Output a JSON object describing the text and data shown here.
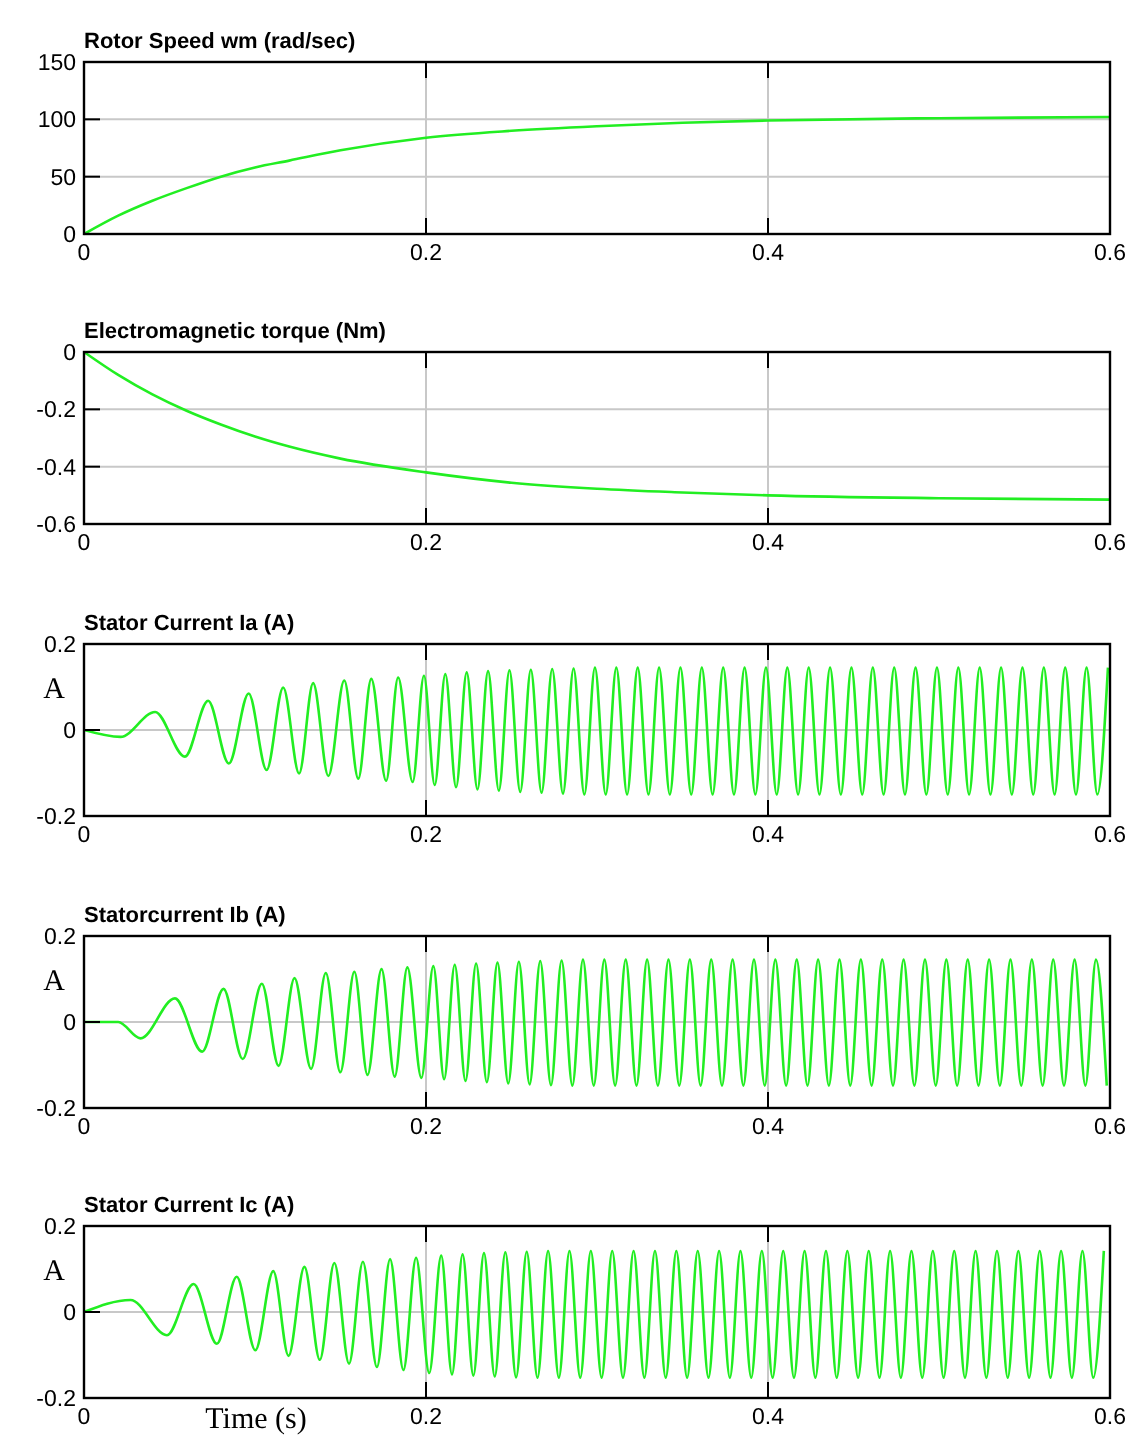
{
  "chart_data": [
    {
      "type": "line",
      "title": "Rotor Speed wm (rad/sec)",
      "xlim": [
        0,
        0.6
      ],
      "ylim": [
        0,
        150
      ],
      "xticks": [
        0,
        0.2,
        0.4,
        0.6
      ],
      "yticks": [
        0,
        50,
        100,
        150
      ],
      "grid": true,
      "series": [
        {
          "color": "#22ee22",
          "x": [
            0,
            0.02,
            0.04,
            0.06,
            0.08,
            0.1,
            0.12,
            0.15,
            0.2,
            0.25,
            0.3,
            0.35,
            0.4,
            0.5,
            0.6
          ],
          "values": [
            0,
            16,
            29,
            40,
            50,
            58,
            64,
            73,
            84,
            90,
            94,
            97,
            99,
            101,
            102
          ]
        }
      ]
    },
    {
      "type": "line",
      "title": "Electromagnetic torque (Nm)",
      "xlim": [
        0,
        0.6
      ],
      "ylim": [
        -0.6,
        0
      ],
      "xticks": [
        0,
        0.2,
        0.4,
        0.6
      ],
      "yticks": [
        -0.6,
        -0.4,
        -0.2,
        0
      ],
      "grid": true,
      "series": [
        {
          "color": "#22ee22",
          "x": [
            0,
            0.02,
            0.04,
            0.06,
            0.08,
            0.1,
            0.12,
            0.15,
            0.2,
            0.25,
            0.3,
            0.35,
            0.4,
            0.5,
            0.6
          ],
          "values": [
            0,
            -0.08,
            -0.148,
            -0.205,
            -0.253,
            -0.295,
            -0.33,
            -0.372,
            -0.42,
            -0.456,
            -0.477,
            -0.49,
            -0.5,
            -0.51,
            -0.515
          ]
        }
      ]
    },
    {
      "type": "line",
      "title": "Stator Current Ia (A)",
      "ylabel": "A",
      "xlim": [
        0,
        0.6
      ],
      "ylim": [
        -0.2,
        0.2
      ],
      "xticks": [
        0,
        0.2,
        0.4,
        0.6
      ],
      "yticks": [
        -0.2,
        0,
        0.2
      ],
      "grid": true,
      "series": [
        {
          "color": "#22ee22",
          "x": [
            0,
            0.0214,
            0.0416,
            0.059,
            0.0726,
            0.0847,
            0.0963,
            0.1068,
            0.1165,
            0.1258,
            0.134,
            0.1429,
            0.1522,
            0.1604,
            0.168,
            0.1767,
            0.1837,
            0.1922,
            0.1988,
            0.2051,
            0.2113,
            0.2176,
            0.2238,
            0.2301,
            0.2363,
            0.2426,
            0.2488,
            0.2551,
            0.2613,
            0.2676,
            0.2738,
            0.2801,
            0.2863,
            0.2926,
            0.2988,
            0.3051,
            0.3113,
            0.3176,
            0.3238,
            0.3301,
            0.3363,
            0.3426,
            0.3488,
            0.3551,
            0.3613,
            0.3676,
            0.3738,
            0.3801,
            0.3863,
            0.3926,
            0.3988,
            0.4051,
            0.4113,
            0.4176,
            0.4238,
            0.4301,
            0.4363,
            0.4426,
            0.4488,
            0.4551,
            0.4613,
            0.4676,
            0.4738,
            0.4801,
            0.4863,
            0.4926,
            0.4988,
            0.5051,
            0.5113,
            0.5176,
            0.5238,
            0.5301,
            0.5363,
            0.5426,
            0.5488,
            0.5551,
            0.5613,
            0.5676,
            0.5738,
            0.5801,
            0.5863,
            0.5926,
            0.5988
          ],
          "values": [
            0,
            -0.016,
            0.042,
            -0.062,
            0.068,
            -0.078,
            0.085,
            -0.093,
            0.099,
            -0.101,
            0.109,
            -0.107,
            0.115,
            -0.113,
            0.119,
            -0.118,
            0.122,
            -0.121,
            0.126,
            -0.128,
            0.13,
            -0.133,
            0.134,
            -0.138,
            0.137,
            -0.141,
            0.139,
            -0.144,
            0.14,
            -0.146,
            0.142,
            -0.148,
            0.143,
            -0.15,
            0.145,
            -0.15,
            0.145,
            -0.15,
            0.145,
            -0.15,
            0.145,
            -0.15,
            0.145,
            -0.15,
            0.145,
            -0.15,
            0.145,
            -0.15,
            0.145,
            -0.15,
            0.145,
            -0.15,
            0.145,
            -0.15,
            0.145,
            -0.15,
            0.145,
            -0.15,
            0.145,
            -0.15,
            0.145,
            -0.15,
            0.145,
            -0.15,
            0.145,
            -0.15,
            0.145,
            -0.15,
            0.145,
            -0.15,
            0.145,
            -0.15,
            0.145,
            -0.15,
            0.145,
            -0.15,
            0.145,
            -0.15,
            0.145,
            -0.15,
            0.145,
            -0.15,
            0.145
          ]
        }
      ]
    },
    {
      "type": "line",
      "title": "Statorcurrent Ib (A)",
      "ylabel": "A",
      "xlim": [
        0,
        0.6
      ],
      "ylim": [
        -0.2,
        0.2
      ],
      "xticks": [
        0,
        0.2,
        0.4,
        0.6
      ],
      "yticks": [
        -0.2,
        0,
        0.2
      ],
      "grid": true,
      "series": [
        {
          "color": "#22ee22",
          "x": [
            0,
            0.02,
            0.033,
            0.0532,
            0.0691,
            0.0816,
            0.0928,
            0.104,
            0.1138,
            0.1231,
            0.1328,
            0.1414,
            0.1499,
            0.1581,
            0.1658,
            0.174,
            0.1817,
            0.1891,
            0.1973,
            0.2043,
            0.2106,
            0.2168,
            0.2231,
            0.2293,
            0.2356,
            0.2418,
            0.2481,
            0.2543,
            0.2606,
            0.2668,
            0.2731,
            0.2793,
            0.2856,
            0.2918,
            0.2981,
            0.3043,
            0.3106,
            0.3168,
            0.3231,
            0.3293,
            0.3356,
            0.3418,
            0.3481,
            0.3543,
            0.3606,
            0.3668,
            0.3731,
            0.3793,
            0.3856,
            0.3918,
            0.3981,
            0.4043,
            0.4106,
            0.4168,
            0.4231,
            0.4293,
            0.4356,
            0.4418,
            0.4481,
            0.4543,
            0.4606,
            0.4668,
            0.4731,
            0.4793,
            0.4856,
            0.4918,
            0.4981,
            0.5043,
            0.5106,
            0.5168,
            0.5231,
            0.5293,
            0.5356,
            0.5418,
            0.5481,
            0.5543,
            0.5606,
            0.5668,
            0.5731,
            0.5793,
            0.5856,
            0.5918,
            0.5981
          ],
          "values": [
            0,
            0,
            -0.038,
            0.055,
            -0.069,
            0.077,
            -0.086,
            0.089,
            -0.102,
            0.102,
            -0.109,
            0.114,
            -0.117,
            0.117,
            -0.123,
            0.123,
            -0.127,
            0.127,
            -0.13,
            0.13,
            -0.133,
            0.133,
            -0.137,
            0.136,
            -0.14,
            0.138,
            -0.143,
            0.14,
            -0.145,
            0.142,
            -0.147,
            0.143,
            -0.148,
            0.145,
            -0.148,
            0.145,
            -0.148,
            0.145,
            -0.148,
            0.145,
            -0.148,
            0.145,
            -0.148,
            0.145,
            -0.148,
            0.145,
            -0.148,
            0.145,
            -0.148,
            0.145,
            -0.148,
            0.145,
            -0.148,
            0.145,
            -0.148,
            0.145,
            -0.148,
            0.145,
            -0.148,
            0.145,
            -0.148,
            0.145,
            -0.148,
            0.145,
            -0.148,
            0.145,
            -0.148,
            0.145,
            -0.148,
            0.145,
            -0.148,
            0.145,
            -0.148,
            0.145,
            -0.148,
            0.145,
            -0.148,
            0.145,
            -0.148,
            0.145,
            -0.148,
            0.145,
            -0.148
          ]
        }
      ]
    },
    {
      "type": "line",
      "title": "Stator Current Ic (A)",
      "ylabel": "A",
      "xlabel": "Time (s)",
      "xlim": [
        0,
        0.6
      ],
      "ylim": [
        -0.2,
        0.2
      ],
      "xticks": [
        0,
        0.2,
        0.4,
        0.6
      ],
      "yticks": [
        -0.2,
        0,
        0.2
      ],
      "grid": true,
      "series": [
        {
          "color": "#22ee22",
          "x": [
            0,
            0.0272,
            0.0485,
            0.0641,
            0.0777,
            0.0893,
            0.1002,
            0.1107,
            0.1196,
            0.1289,
            0.1379,
            0.1464,
            0.155,
            0.1631,
            0.1713,
            0.179,
            0.1868,
            0.1942,
            0.2019,
            0.2089,
            0.2152,
            0.2214,
            0.2277,
            0.2339,
            0.2402,
            0.2464,
            0.2527,
            0.2589,
            0.2652,
            0.2714,
            0.2777,
            0.2839,
            0.2902,
            0.2964,
            0.3027,
            0.3089,
            0.3152,
            0.3214,
            0.3277,
            0.3339,
            0.3402,
            0.3464,
            0.3527,
            0.3589,
            0.3652,
            0.3714,
            0.3777,
            0.3839,
            0.3902,
            0.3964,
            0.4027,
            0.4089,
            0.4152,
            0.4214,
            0.4277,
            0.4339,
            0.4402,
            0.4464,
            0.4527,
            0.4589,
            0.4652,
            0.4714,
            0.4777,
            0.4839,
            0.4902,
            0.4964,
            0.5027,
            0.5089,
            0.5152,
            0.5214,
            0.5277,
            0.5339,
            0.5402,
            0.5464,
            0.5527,
            0.5589,
            0.5652,
            0.5714,
            0.5777,
            0.5839,
            0.5902,
            0.5964
          ],
          "values": [
            0,
            0.028,
            -0.054,
            0.065,
            -0.074,
            0.082,
            -0.089,
            0.095,
            -0.102,
            0.105,
            -0.111,
            0.114,
            -0.12,
            0.117,
            -0.128,
            0.123,
            -0.135,
            0.126,
            -0.142,
            0.131,
            -0.145,
            0.134,
            -0.148,
            0.137,
            -0.15,
            0.139,
            -0.152,
            0.14,
            -0.153,
            0.142,
            -0.153,
            0.142,
            -0.153,
            0.142,
            -0.153,
            0.142,
            -0.153,
            0.142,
            -0.153,
            0.142,
            -0.153,
            0.142,
            -0.153,
            0.142,
            -0.153,
            0.142,
            -0.153,
            0.142,
            -0.153,
            0.142,
            -0.153,
            0.142,
            -0.153,
            0.142,
            -0.153,
            0.142,
            -0.153,
            0.142,
            -0.153,
            0.142,
            -0.153,
            0.142,
            -0.153,
            0.142,
            -0.153,
            0.142,
            -0.153,
            0.142,
            -0.153,
            0.142,
            -0.153,
            0.142,
            -0.153,
            0.142,
            -0.153,
            0.142,
            -0.153,
            0.142,
            -0.153,
            0.142,
            -0.153,
            0.142
          ]
        }
      ]
    }
  ]
}
